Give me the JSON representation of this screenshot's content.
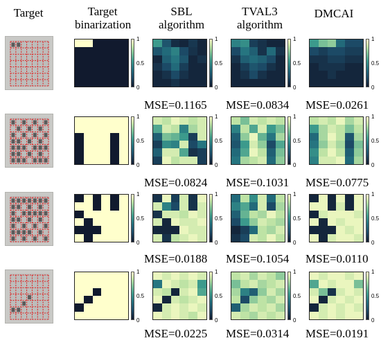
{
  "headers": [
    "Target",
    "Target\nbinarization",
    "SBL\nalgorithm",
    "TVAL3\nalgorithm",
    "DMCAI"
  ],
  "colorbar_ticks": [
    "1",
    "0.5",
    "0"
  ],
  "colormap": {
    "low": "#111a2e",
    "mid": "#3c9a8c",
    "high": "#ffffcc",
    "grid_line_color": "#e02020"
  },
  "rows": [
    {
      "binarization": [
        [
          1,
          1,
          0,
          0,
          0,
          0
        ],
        [
          0,
          0,
          0,
          0,
          0,
          0
        ],
        [
          0,
          0,
          0,
          0,
          0,
          0
        ],
        [
          0,
          0,
          0,
          0,
          0,
          0
        ],
        [
          0,
          0,
          0,
          0,
          0,
          0
        ],
        [
          0,
          0,
          0,
          0,
          0,
          0
        ]
      ],
      "sbl": {
        "mse": "MSE=0.1165",
        "grid": [
          [
            0.55,
            0.25,
            0.08,
            0.05,
            0.12,
            0.05
          ],
          [
            0.25,
            0.35,
            0.45,
            0.2,
            0.1,
            0.05
          ],
          [
            0.05,
            0.3,
            0.4,
            0.25,
            0.05,
            0.1
          ],
          [
            0.1,
            0.2,
            0.35,
            0.15,
            0.05,
            0.05
          ],
          [
            0.05,
            0.1,
            0.2,
            0.1,
            0.05,
            0.05
          ],
          [
            0.05,
            0.05,
            0.1,
            0.05,
            0.05,
            0.05
          ]
        ]
      },
      "tval3": {
        "mse": "MSE=0.0834",
        "grid": [
          [
            0.45,
            0.5,
            0.15,
            0.1,
            0.05,
            0.05
          ],
          [
            0.2,
            0.4,
            0.3,
            0.1,
            0.35,
            0.1
          ],
          [
            0.1,
            0.3,
            0.35,
            0.3,
            0.2,
            0.05
          ],
          [
            0.05,
            0.15,
            0.25,
            0.2,
            0.1,
            0.05
          ],
          [
            0.05,
            0.1,
            0.2,
            0.1,
            0.05,
            0.05
          ],
          [
            0.05,
            0.05,
            0.05,
            0.05,
            0.05,
            0.05
          ]
        ]
      },
      "dmcai": {
        "mse": "MSE=0.0261",
        "grid": [
          [
            0.55,
            0.7,
            0.75,
            0.35,
            0.2,
            0.2
          ],
          [
            0.2,
            0.15,
            0.2,
            0.2,
            0.15,
            0.15
          ],
          [
            0.1,
            0.1,
            0.15,
            0.15,
            0.1,
            0.1
          ],
          [
            0.05,
            0.1,
            0.1,
            0.1,
            0.05,
            0.05
          ],
          [
            0.05,
            0.05,
            0.1,
            0.05,
            0.05,
            0.05
          ],
          [
            0.05,
            0.05,
            0.05,
            0.05,
            0.05,
            0.05
          ]
        ]
      }
    },
    {
      "binarization": [
        [
          1,
          1,
          1,
          1,
          1,
          1
        ],
        [
          1,
          1,
          1,
          1,
          1,
          1
        ],
        [
          0,
          1,
          1,
          1,
          0,
          1
        ],
        [
          0,
          1,
          1,
          1,
          0,
          1
        ],
        [
          0,
          1,
          1,
          1,
          0,
          1
        ],
        [
          0,
          1,
          1,
          1,
          0,
          1
        ]
      ],
      "sbl": {
        "mse": "MSE=0.0824",
        "grid": [
          [
            0.9,
            0.85,
            0.95,
            0.9,
            0.85,
            0.9
          ],
          [
            0.6,
            0.9,
            0.85,
            0.45,
            0.8,
            0.9
          ],
          [
            0.3,
            0.7,
            0.65,
            0.55,
            0.15,
            0.9
          ],
          [
            0.15,
            0.5,
            0.45,
            0.9,
            0.2,
            0.4
          ],
          [
            0.3,
            0.9,
            0.9,
            0.6,
            0.1,
            0.15
          ],
          [
            0.15,
            0.95,
            0.85,
            0.9,
            0.9,
            0.15
          ]
        ]
      },
      "tval3": {
        "mse": "MSE=0.1031",
        "grid": [
          [
            0.85,
            0.7,
            0.9,
            0.85,
            0.9,
            0.85
          ],
          [
            0.45,
            0.85,
            0.6,
            0.9,
            0.55,
            0.7
          ],
          [
            0.3,
            0.75,
            0.95,
            0.65,
            0.4,
            0.8
          ],
          [
            0.25,
            0.55,
            0.9,
            0.75,
            0.2,
            0.6
          ],
          [
            0.35,
            0.6,
            0.95,
            0.85,
            0.3,
            0.7
          ],
          [
            0.4,
            0.8,
            0.85,
            0.9,
            0.35,
            0.75
          ]
        ]
      },
      "dmcai": {
        "mse": "MSE=0.0775",
        "grid": [
          [
            0.85,
            0.9,
            0.85,
            0.95,
            0.8,
            0.9
          ],
          [
            0.55,
            0.8,
            0.9,
            0.85,
            0.7,
            0.85
          ],
          [
            0.35,
            0.8,
            0.95,
            0.85,
            0.25,
            0.8
          ],
          [
            0.4,
            0.75,
            0.9,
            0.8,
            0.2,
            0.7
          ],
          [
            0.5,
            0.85,
            0.95,
            0.85,
            0.3,
            0.75
          ],
          [
            0.45,
            0.9,
            0.9,
            0.95,
            0.35,
            0.8
          ]
        ]
      }
    },
    {
      "binarization": [
        [
          0,
          1,
          0,
          1,
          0,
          1
        ],
        [
          1,
          1,
          0,
          1,
          0,
          1
        ],
        [
          0,
          1,
          1,
          1,
          1,
          1
        ],
        [
          1,
          0,
          1,
          1,
          1,
          1
        ],
        [
          0,
          0,
          0,
          1,
          1,
          1
        ],
        [
          1,
          0,
          1,
          1,
          1,
          1
        ]
      ],
      "sbl": {
        "mse": "MSE=0.0188",
        "grid": [
          [
            0.1,
            0.95,
            0.15,
            0.9,
            0.1,
            0.95
          ],
          [
            0.9,
            0.45,
            0.2,
            0.9,
            0.1,
            0.9
          ],
          [
            0.1,
            0.9,
            0.9,
            0.85,
            0.95,
            0.9
          ],
          [
            0.9,
            0.05,
            0.95,
            0.9,
            0.9,
            0.95
          ],
          [
            0.05,
            0.05,
            0.05,
            0.95,
            0.9,
            0.9
          ],
          [
            0.9,
            0.1,
            0.85,
            0.9,
            0.95,
            0.9
          ]
        ]
      },
      "tval3": {
        "mse": "MSE=0.1054",
        "grid": [
          [
            0.35,
            0.85,
            0.5,
            0.9,
            0.35,
            0.85
          ],
          [
            0.45,
            0.6,
            0.35,
            0.9,
            0.2,
            0.8
          ],
          [
            0.3,
            0.65,
            0.85,
            0.8,
            0.95,
            0.85
          ],
          [
            0.2,
            0.55,
            0.75,
            0.9,
            0.85,
            0.8
          ],
          [
            0.05,
            0.15,
            0.35,
            0.85,
            0.8,
            0.9
          ],
          [
            0.1,
            0.2,
            0.9,
            0.85,
            0.95,
            0.85
          ]
        ]
      },
      "dmcai": {
        "mse": "MSE=0.0110",
        "grid": [
          [
            0.05,
            0.95,
            0.05,
            0.95,
            0.05,
            0.95
          ],
          [
            0.95,
            0.95,
            0.05,
            0.9,
            0.05,
            0.95
          ],
          [
            0.05,
            0.9,
            0.95,
            0.95,
            0.95,
            0.9
          ],
          [
            0.95,
            0.05,
            0.95,
            0.9,
            0.95,
            0.95
          ],
          [
            0.05,
            0.05,
            0.05,
            0.95,
            0.9,
            0.95
          ],
          [
            0.95,
            0.05,
            0.9,
            0.95,
            0.95,
            0.9
          ]
        ]
      }
    },
    {
      "binarization": [
        [
          1,
          1,
          1,
          1,
          1,
          1
        ],
        [
          1,
          1,
          1,
          1,
          1,
          1
        ],
        [
          1,
          1,
          0,
          1,
          1,
          1
        ],
        [
          1,
          0,
          1,
          1,
          1,
          1
        ],
        [
          0,
          1,
          1,
          1,
          1,
          1
        ],
        [
          1,
          1,
          1,
          1,
          1,
          1
        ]
      ],
      "sbl": {
        "mse": "MSE=0.0225",
        "grid": [
          [
            0.95,
            0.9,
            0.95,
            0.9,
            0.95,
            0.9
          ],
          [
            0.4,
            0.95,
            0.9,
            0.85,
            0.9,
            0.55
          ],
          [
            0.9,
            0.85,
            0.05,
            0.9,
            0.95,
            0.6
          ],
          [
            0.95,
            0.05,
            0.9,
            0.85,
            0.9,
            0.95
          ],
          [
            0.05,
            0.9,
            0.95,
            0.9,
            0.95,
            0.9
          ],
          [
            0.95,
            0.9,
            0.95,
            0.9,
            0.85,
            0.95
          ]
        ]
      },
      "tval3": {
        "mse": "MSE=0.0314",
        "grid": [
          [
            0.85,
            0.9,
            0.8,
            0.9,
            0.85,
            0.75
          ],
          [
            0.7,
            0.85,
            0.9,
            0.8,
            0.85,
            0.9
          ],
          [
            0.8,
            0.45,
            0.3,
            0.75,
            0.9,
            0.8
          ],
          [
            0.85,
            0.2,
            0.75,
            0.85,
            0.8,
            0.9
          ],
          [
            0.3,
            0.8,
            0.9,
            0.85,
            0.9,
            0.8
          ],
          [
            0.9,
            0.85,
            0.8,
            0.9,
            0.85,
            0.9
          ]
        ]
      },
      "dmcai": {
        "mse": "MSE=0.0191",
        "grid": [
          [
            0.95,
            0.9,
            0.95,
            0.95,
            0.9,
            0.95
          ],
          [
            0.6,
            0.95,
            0.9,
            0.95,
            0.95,
            0.7
          ],
          [
            0.9,
            0.7,
            0.1,
            0.9,
            0.95,
            0.9
          ],
          [
            0.95,
            0.05,
            0.9,
            0.95,
            0.9,
            0.95
          ],
          [
            0.05,
            0.9,
            0.95,
            0.9,
            0.95,
            0.9
          ],
          [
            0.95,
            0.9,
            0.95,
            0.9,
            0.95,
            0.95
          ]
        ]
      }
    }
  ]
}
